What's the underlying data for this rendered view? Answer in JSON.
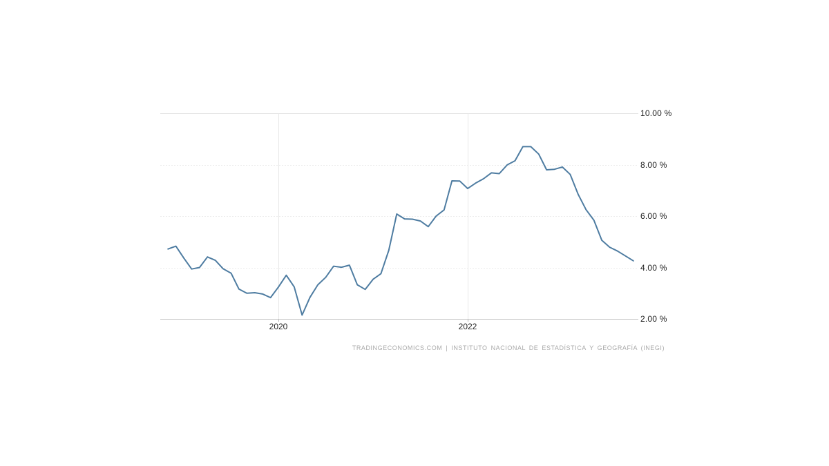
{
  "footer": {
    "attribution": "TRADINGECONOMICS.COM | INSTITUTO NACIONAL DE ESTADÍSTICA Y GEOGRAFÍA (INEGI)"
  },
  "chart_data": {
    "type": "line",
    "title": "",
    "ylabel": "",
    "xlabel": "",
    "ylim": [
      2,
      10
    ],
    "grid": "horizontal-light-plus-year-verticals",
    "legend": "none",
    "line_color": "#4e7ca1",
    "gridline_color": "#ececec",
    "axis_line_color": "#cccccc",
    "tick_label_color": "#222222",
    "attribution_color": "#a9a9a9",
    "yticks": [
      {
        "value": 10,
        "label": "10.00 %"
      },
      {
        "value": 8,
        "label": "8.00 %"
      },
      {
        "value": 6,
        "label": "6.00 %"
      },
      {
        "value": 4,
        "label": "4.00 %"
      },
      {
        "value": 2,
        "label": "2.00 %"
      }
    ],
    "xticks": [
      {
        "month": "2020-01",
        "label": "2020"
      },
      {
        "month": "2022-01",
        "label": "2022"
      }
    ],
    "x": [
      "2018-11",
      "2018-12",
      "2019-01",
      "2019-02",
      "2019-03",
      "2019-04",
      "2019-05",
      "2019-06",
      "2019-07",
      "2019-08",
      "2019-09",
      "2019-10",
      "2019-11",
      "2019-12",
      "2020-01",
      "2020-02",
      "2020-03",
      "2020-04",
      "2020-05",
      "2020-06",
      "2020-07",
      "2020-08",
      "2020-09",
      "2020-10",
      "2020-11",
      "2020-12",
      "2021-01",
      "2021-02",
      "2021-03",
      "2021-04",
      "2021-05",
      "2021-06",
      "2021-07",
      "2021-08",
      "2021-09",
      "2021-10",
      "2021-11",
      "2021-12",
      "2022-01",
      "2022-02",
      "2022-03",
      "2022-04",
      "2022-05",
      "2022-06",
      "2022-07",
      "2022-08",
      "2022-09",
      "2022-10",
      "2022-11",
      "2022-12",
      "2023-01",
      "2023-02",
      "2023-03",
      "2023-04",
      "2023-05",
      "2023-06",
      "2023-07",
      "2023-08",
      "2023-09",
      "2023-10"
    ],
    "values": [
      4.72,
      4.83,
      4.37,
      3.94,
      4.0,
      4.41,
      4.28,
      3.95,
      3.78,
      3.16,
      3.0,
      3.02,
      2.97,
      2.83,
      3.24,
      3.7,
      3.25,
      2.15,
      2.84,
      3.33,
      3.62,
      4.05,
      4.01,
      4.09,
      3.33,
      3.15,
      3.54,
      3.76,
      4.67,
      6.08,
      5.89,
      5.88,
      5.81,
      5.59,
      6.0,
      6.24,
      7.37,
      7.36,
      7.07,
      7.28,
      7.45,
      7.68,
      7.65,
      7.99,
      8.15,
      8.7,
      8.7,
      8.41,
      7.8,
      7.82,
      7.91,
      7.62,
      6.85,
      6.25,
      5.84,
      5.06,
      4.79,
      4.64,
      4.45,
      4.26
    ]
  }
}
